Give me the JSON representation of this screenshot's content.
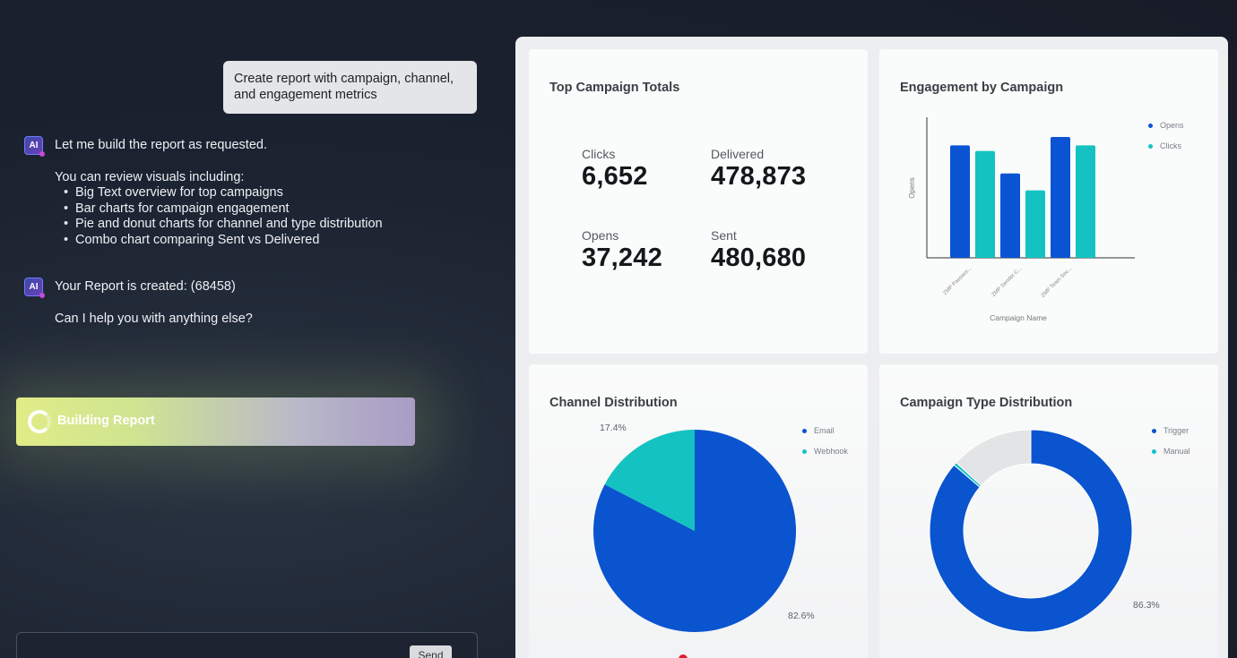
{
  "chat": {
    "user_message": "Create report with campaign, channel, and engagement metrics",
    "ai_icon_label": "AI",
    "ai_message_1": {
      "intro": "Let me build the report as requested.",
      "list_heading": "You can review visuals including:",
      "bullets": [
        "Big Text overview for top campaigns",
        "Bar charts for campaign engagement",
        "Pie and donut charts for channel and type distribution",
        "Combo chart comparing Sent vs Delivered"
      ]
    },
    "ai_message_2": {
      "created": "Your Report is created: (68458)",
      "followup": "Can I help you with anything else?"
    },
    "status_bar": {
      "label": "Building Report"
    },
    "input": {
      "placeholder": "",
      "send_label": "Send"
    }
  },
  "dashboard": {
    "top_campaign_totals": {
      "title": "Top Campaign Totals",
      "metrics": [
        {
          "label": "Clicks",
          "value": "6,652"
        },
        {
          "label": "Delivered",
          "value": "478,873"
        },
        {
          "label": "Opens",
          "value": "37,242"
        },
        {
          "label": "Sent",
          "value": "480,680"
        }
      ]
    },
    "engagement_by_campaign": {
      "title": "Engagement by Campaign",
      "chart_data": {
        "type": "bar",
        "categories": [
          "ZMP Passwor...",
          "ZMP Sender C...",
          "ZMP Team Sec..."
        ],
        "series": [
          {
            "name": "Opens",
            "values": [
              80,
              60,
              86
            ],
            "color": "#0a54d4"
          },
          {
            "name": "Clicks",
            "values": [
              76,
              48,
              80
            ],
            "color": "#14c3c1"
          }
        ],
        "xlabel": "Campaign Name",
        "ylabel": "Opens",
        "ylim": [
          0,
          100
        ],
        "legend": "top-right",
        "grid": false
      }
    },
    "channel_distribution": {
      "title": "Channel Distribution",
      "chart_data": {
        "type": "pie",
        "slices": [
          {
            "name": "Email",
            "value": 82.6,
            "label": "82.6%",
            "color": "#0a54cf"
          },
          {
            "name": "Webhook",
            "value": 17.4,
            "label": "17.4%",
            "color": "#14c3c1"
          }
        ],
        "legend": "top-right"
      }
    },
    "campaign_type_distribution": {
      "title": "Campaign Type Distribution",
      "chart_data": {
        "type": "pie",
        "donut": true,
        "slices": [
          {
            "name": "Trigger",
            "value": 86.3,
            "label": "86.3%",
            "color": "#0a54cf"
          },
          {
            "name": "Manual",
            "value": 0.5,
            "label": "",
            "color": "#14c3c1"
          },
          {
            "name": "",
            "value": 13.2,
            "label": "",
            "color": "#e3e4e6"
          }
        ],
        "legend": "top-right"
      }
    }
  }
}
